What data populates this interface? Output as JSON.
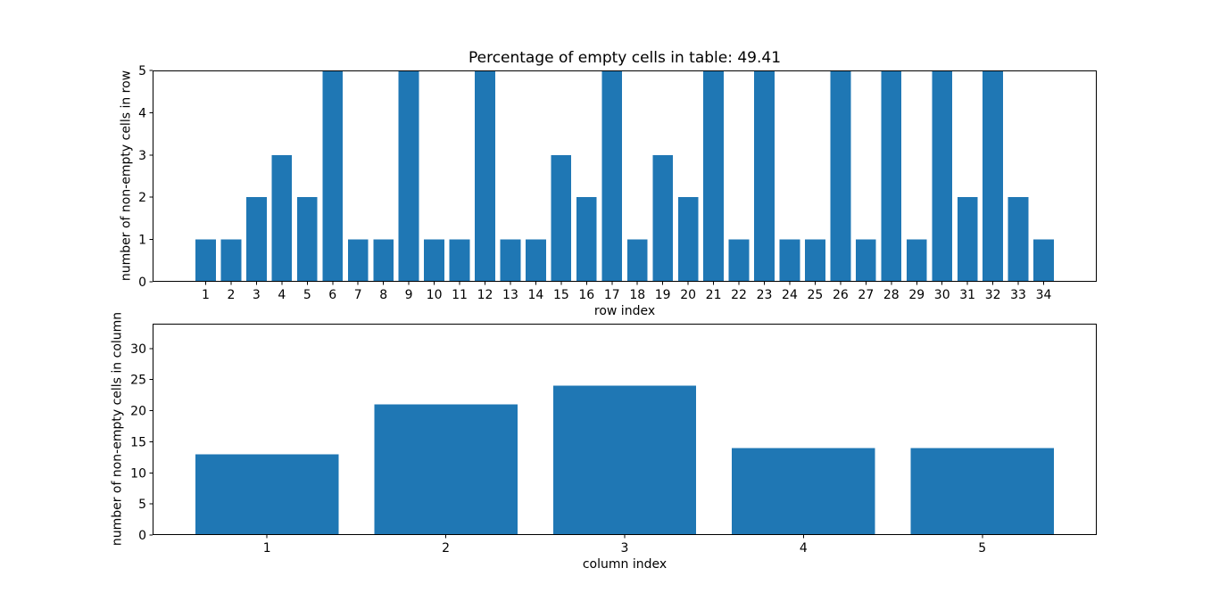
{
  "figure": {
    "background": "#ffffff",
    "axis_color": "#000000"
  },
  "chart_data": [
    {
      "id": "rows",
      "type": "bar",
      "title": "Percentage of empty cells in table: 49.41",
      "xlabel": "row index",
      "ylabel": "number of non-empty cells in row",
      "categories": [
        "1",
        "2",
        "3",
        "4",
        "5",
        "6",
        "7",
        "8",
        "9",
        "10",
        "11",
        "12",
        "13",
        "14",
        "15",
        "16",
        "17",
        "18",
        "19",
        "20",
        "21",
        "22",
        "23",
        "24",
        "25",
        "26",
        "27",
        "28",
        "29",
        "30",
        "31",
        "32",
        "33",
        "34"
      ],
      "values": [
        1,
        1,
        2,
        3,
        2,
        5,
        1,
        1,
        5,
        1,
        1,
        5,
        1,
        1,
        3,
        2,
        5,
        1,
        3,
        2,
        5,
        1,
        5,
        1,
        1,
        5,
        1,
        5,
        1,
        5,
        2,
        5,
        2,
        1
      ],
      "bar_color": "#1f77b4",
      "bar_width": 0.8,
      "xlim": [
        -1.09,
        36.09
      ],
      "ylim": [
        0,
        5
      ],
      "yticks": [
        0,
        1,
        2,
        3,
        4,
        5
      ],
      "grid": false,
      "legend": null
    },
    {
      "id": "columns",
      "type": "bar",
      "title": "",
      "xlabel": "column index",
      "ylabel": "number of non-empty cells in column",
      "categories": [
        "1",
        "2",
        "3",
        "4",
        "5"
      ],
      "values": [
        13,
        21,
        24,
        14,
        14
      ],
      "bar_color": "#1f77b4",
      "bar_width": 0.8,
      "xlim": [
        0.36,
        5.64
      ],
      "ylim": [
        0,
        34
      ],
      "yticks": [
        0,
        5,
        10,
        15,
        20,
        25,
        30
      ],
      "grid": false,
      "legend": null
    }
  ]
}
